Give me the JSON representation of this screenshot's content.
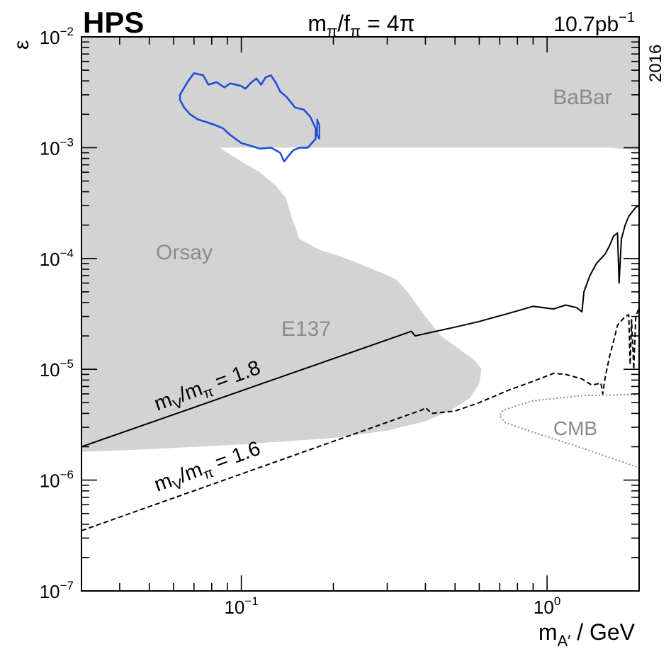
{
  "header": {
    "logo": "HPS",
    "formula_base": "m",
    "formula_sub1": "π",
    "formula_mid": "/f",
    "formula_sub2": "π",
    "formula_rhs": " = 4π",
    "luminosity": "10.7pb",
    "luminosity_exp": "−1",
    "year": "2016"
  },
  "axes": {
    "y_symbol": "ε",
    "x_label_base": "m",
    "x_label_sub": "A′",
    "x_label_unit": " / GeV",
    "y_ticks": [
      {
        "base": "10",
        "exp": "−2",
        "v": 0.01
      },
      {
        "base": "10",
        "exp": "−3",
        "v": 0.001
      },
      {
        "base": "10",
        "exp": "−4",
        "v": 0.0001
      },
      {
        "base": "10",
        "exp": "−5",
        "v": 1e-05
      },
      {
        "base": "10",
        "exp": "−6",
        "v": 1e-06
      },
      {
        "base": "10",
        "exp": "−7",
        "v": 1e-07
      }
    ],
    "x_ticks": [
      {
        "base": "10",
        "exp": "−1",
        "v": 0.1
      },
      {
        "base": "10",
        "exp": "0",
        "v": 1
      }
    ]
  },
  "regions": {
    "babar": "BaBar",
    "orsay": "Orsay",
    "e137": "E137",
    "cmb": "CMB"
  },
  "curve_labels": {
    "solid": {
      "base": "m",
      "sub1": "V",
      "mid": "/m",
      "sub2": "π",
      "rhs": " = 1.8"
    },
    "dashed": {
      "base": "m",
      "sub1": "V",
      "mid": "/m",
      "sub2": "π",
      "rhs": " = 1.6"
    }
  },
  "chart_data": {
    "type": "line",
    "title": "",
    "xlabel": "m_A′ / GeV",
    "ylabel": "ε",
    "xscale": "log",
    "yscale": "log",
    "xlim": [
      0.03,
      2.0
    ],
    "ylim": [
      1e-07,
      0.01
    ],
    "colors": {
      "excluded": "#d3d3d3",
      "hps": "#1f4fd8",
      "curve": "#000000",
      "cmb": "#8a8a8a",
      "region_text": "#8a8a8a"
    },
    "excluded_region": [
      [
        0.03,
        0.01
      ],
      [
        2.0,
        0.01
      ],
      [
        2.0,
        0.00095
      ],
      [
        1.95,
        0.00095
      ],
      [
        1.6,
        0.001
      ],
      [
        0.085,
        0.001
      ],
      [
        0.1,
        0.00075
      ],
      [
        0.115,
        0.0006
      ],
      [
        0.13,
        0.00045
      ],
      [
        0.14,
        0.00035
      ],
      [
        0.145,
        0.00025
      ],
      [
        0.155,
        0.00015
      ],
      [
        0.18,
        0.00012
      ],
      [
        0.22,
        0.0001
      ],
      [
        0.27,
        8e-05
      ],
      [
        0.32,
        6.5e-05
      ],
      [
        0.35,
        5e-05
      ],
      [
        0.37,
        4e-05
      ],
      [
        0.4,
        3e-05
      ],
      [
        0.45,
        2e-05
      ],
      [
        0.52,
        1.5e-05
      ],
      [
        0.58,
        1.2e-05
      ],
      [
        0.61,
        1e-05
      ],
      [
        0.6,
        7.5e-06
      ],
      [
        0.56,
        5.5e-06
      ],
      [
        0.48,
        4.2e-06
      ],
      [
        0.4,
        3.4e-06
      ],
      [
        0.3,
        2.8e-06
      ],
      [
        0.2,
        2.4e-06
      ],
      [
        0.1,
        2.1e-06
      ],
      [
        0.05,
        1.9e-06
      ],
      [
        0.03,
        1.8e-06
      ]
    ],
    "series": [
      {
        "name": "mV/mπ = 1.8",
        "style": "solid",
        "points": [
          [
            0.03,
            2e-06
          ],
          [
            0.36,
            2.2e-05
          ],
          [
            0.37,
            2e-05
          ],
          [
            0.4,
            2.1e-05
          ],
          [
            0.5,
            2.4e-05
          ],
          [
            0.6,
            2.7e-05
          ],
          [
            0.75,
            3.2e-05
          ],
          [
            0.9,
            3.7e-05
          ],
          [
            1.05,
            3.5e-05
          ],
          [
            1.15,
            3.8e-05
          ],
          [
            1.25,
            3.6e-05
          ],
          [
            1.3,
            3.3e-05
          ],
          [
            1.32,
            5e-05
          ],
          [
            1.38,
            7e-05
          ],
          [
            1.45,
            9e-05
          ],
          [
            1.55,
            0.00011
          ],
          [
            1.6,
            0.00013
          ],
          [
            1.65,
            0.00016
          ],
          [
            1.7,
            0.00017
          ],
          [
            1.72,
            6e-05
          ],
          [
            1.75,
            0.00015
          ],
          [
            1.8,
            0.0002
          ],
          [
            1.85,
            0.00024
          ],
          [
            1.95,
            0.00029
          ],
          [
            2.0,
            0.0003
          ]
        ]
      },
      {
        "name": "mV/mπ = 1.6",
        "style": "dashed",
        "points": [
          [
            0.03,
            3.5e-07
          ],
          [
            0.39,
            4.3e-06
          ],
          [
            0.4,
            4.5e-06
          ],
          [
            0.42,
            4e-06
          ],
          [
            0.5,
            4.2e-06
          ],
          [
            0.6,
            5e-06
          ],
          [
            0.75,
            6.5e-06
          ],
          [
            0.9,
            7.8e-06
          ],
          [
            1.05,
            9.2e-06
          ],
          [
            1.15,
            9e-06
          ],
          [
            1.3,
            8.2e-06
          ],
          [
            1.4,
            7.2e-06
          ],
          [
            1.5,
            7.5e-06
          ],
          [
            1.52,
            6e-06
          ],
          [
            1.55,
            8.5e-06
          ],
          [
            1.6,
            1.3e-05
          ],
          [
            1.65,
            1.8e-05
          ],
          [
            1.7,
            2.5e-05
          ],
          [
            1.8,
            3e-05
          ],
          [
            1.85,
            3.1e-05
          ],
          [
            1.87,
            1.1e-05
          ],
          [
            1.89,
            2.8e-05
          ],
          [
            1.92,
            1e-05
          ],
          [
            1.95,
            3e-05
          ],
          [
            2.0,
            3.6e-05
          ]
        ]
      },
      {
        "name": "CMB",
        "style": "dotted",
        "points": [
          [
            2.0,
            5.9e-06
          ],
          [
            1.3,
            5.8e-06
          ],
          [
            0.9,
            5.2e-06
          ],
          [
            0.72,
            4.3e-06
          ],
          [
            0.7,
            3.8e-06
          ],
          [
            0.73,
            3.3e-06
          ],
          [
            0.9,
            2.7e-06
          ],
          [
            1.2,
            2.1e-06
          ],
          [
            1.6,
            1.6e-06
          ],
          [
            2.0,
            1.3e-06
          ]
        ]
      },
      {
        "name": "HPS",
        "style": "solid",
        "closed": true,
        "points": [
          [
            0.063,
            0.003
          ],
          [
            0.067,
            0.004
          ],
          [
            0.07,
            0.0047
          ],
          [
            0.075,
            0.0045
          ],
          [
            0.078,
            0.0037
          ],
          [
            0.083,
            0.0039
          ],
          [
            0.088,
            0.0035
          ],
          [
            0.092,
            0.0038
          ],
          [
            0.1,
            0.0036
          ],
          [
            0.103,
            0.0034
          ],
          [
            0.108,
            0.0039
          ],
          [
            0.112,
            0.0042
          ],
          [
            0.116,
            0.0037
          ],
          [
            0.12,
            0.0043
          ],
          [
            0.125,
            0.0045
          ],
          [
            0.13,
            0.0038
          ],
          [
            0.134,
            0.0032
          ],
          [
            0.14,
            0.0029
          ],
          [
            0.15,
            0.0023
          ],
          [
            0.16,
            0.0022
          ],
          [
            0.168,
            0.0019
          ],
          [
            0.175,
            0.0015
          ],
          [
            0.175,
            0.0012
          ],
          [
            0.165,
            0.001
          ],
          [
            0.155,
            0.001
          ],
          [
            0.148,
            0.00095
          ],
          [
            0.143,
            0.00085
          ],
          [
            0.138,
            0.00075
          ],
          [
            0.134,
            0.0009
          ],
          [
            0.125,
            0.001
          ],
          [
            0.115,
            0.00098
          ],
          [
            0.1,
            0.0011
          ],
          [
            0.092,
            0.0013
          ],
          [
            0.087,
            0.0015
          ],
          [
            0.082,
            0.0016
          ],
          [
            0.077,
            0.0017
          ],
          [
            0.072,
            0.0018
          ],
          [
            0.068,
            0.002
          ],
          [
            0.065,
            0.0023
          ],
          [
            0.063,
            0.0027
          ],
          [
            0.063,
            0.003
          ]
        ]
      },
      {
        "name": "HPS island",
        "style": "solid",
        "closed": true,
        "points": [
          [
            0.177,
            0.0018
          ],
          [
            0.18,
            0.0016
          ],
          [
            0.18,
            0.0012
          ],
          [
            0.177,
            0.0013
          ],
          [
            0.177,
            0.0018
          ]
        ]
      }
    ]
  }
}
